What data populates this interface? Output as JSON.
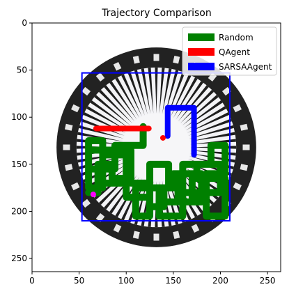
{
  "chart_data": {
    "type": "line",
    "title": "Trajectory Comparison",
    "xlabel": "",
    "ylabel": "",
    "xlim": [
      0,
      264
    ],
    "ylim": [
      264,
      0
    ],
    "y_inverted": true,
    "xticks": [
      0,
      50,
      100,
      150,
      200,
      250
    ],
    "yticks": [
      0,
      50,
      100,
      150,
      200,
      250
    ],
    "grid": false,
    "legend_position": "top-right",
    "background_image": "circular black-and-white seal with radiating rays and lettering around the rim",
    "series": [
      {
        "name": "Random",
        "color": "#008000",
        "points": [
          [
            118,
            110
          ],
          [
            118,
            130
          ],
          [
            88,
            130
          ],
          [
            88,
            155
          ],
          [
            60,
            155
          ],
          [
            60,
            125
          ],
          [
            75,
            125
          ],
          [
            75,
            170
          ],
          [
            100,
            170
          ],
          [
            100,
            140
          ],
          [
            75,
            140
          ],
          [
            75,
            175
          ],
          [
            60,
            175
          ],
          [
            60,
            135
          ],
          [
            105,
            135
          ],
          [
            105,
            170
          ],
          [
            125,
            170
          ],
          [
            125,
            150
          ],
          [
            145,
            150
          ],
          [
            145,
            175
          ],
          [
            125,
            175
          ],
          [
            125,
            195
          ],
          [
            140,
            195
          ],
          [
            140,
            175
          ],
          [
            160,
            175
          ],
          [
            160,
            160
          ],
          [
            180,
            160
          ],
          [
            180,
            190
          ],
          [
            160,
            190
          ],
          [
            160,
            150
          ],
          [
            190,
            150
          ],
          [
            190,
            130
          ],
          [
            205,
            130
          ],
          [
            205,
            160
          ],
          [
            185,
            160
          ],
          [
            185,
            185
          ],
          [
            170,
            185
          ],
          [
            170,
            160
          ],
          [
            150,
            160
          ],
          [
            150,
            175
          ],
          [
            135,
            175
          ],
          [
            135,
            205
          ],
          [
            160,
            205
          ],
          [
            160,
            180
          ],
          [
            200,
            180
          ],
          [
            200,
            150
          ],
          [
            175,
            150
          ],
          [
            175,
            165
          ],
          [
            205,
            165
          ],
          [
            205,
            205
          ],
          [
            185,
            205
          ],
          [
            185,
            180
          ],
          [
            170,
            180
          ],
          [
            170,
            160
          ],
          [
            155,
            160
          ],
          [
            155,
            190
          ],
          [
            140,
            190
          ],
          [
            140,
            175
          ],
          [
            110,
            175
          ],
          [
            110,
            205
          ],
          [
            125,
            205
          ],
          [
            125,
            185
          ],
          [
            100,
            185
          ],
          [
            100,
            165
          ],
          [
            85,
            165
          ],
          [
            85,
            150
          ],
          [
            70,
            150
          ],
          [
            70,
            180
          ],
          [
            60,
            180
          ]
        ]
      },
      {
        "name": "QAgent",
        "color": "#ff0000",
        "points": [
          [
            68,
            112
          ],
          [
            124,
            112
          ]
        ]
      },
      {
        "name": "SARSAAgent",
        "color": "#0000ff",
        "points": [
          [
            144,
            120
          ],
          [
            144,
            90
          ],
          [
            172,
            90
          ],
          [
            172,
            140
          ]
        ]
      }
    ],
    "annotations": [
      {
        "type": "rectangle",
        "color": "#0000ff",
        "x0": 53,
        "y0": 53,
        "x1": 210,
        "y1": 210
      },
      {
        "type": "point",
        "color": "#ff0000",
        "x": 139,
        "y": 122
      },
      {
        "type": "point",
        "color": "#ff00ff",
        "x": 65,
        "y": 182
      }
    ]
  }
}
